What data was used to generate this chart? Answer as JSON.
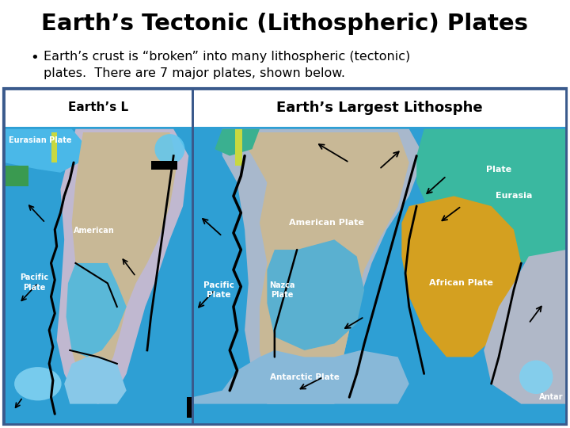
{
  "title": "Earth’s Tectonic (Lithospheric) Plates",
  "bullet": "Earth’s crust is “broken” into many lithospheric (tectonic)\nplates.  There are 7 major plates, shown below.",
  "bg_color": "#ffffff",
  "box_border_color": "#3a5a8c",
  "title_color": "#000000",
  "bullet_color": "#000000",
  "ocean_dark": "#2b9fd4",
  "ocean_mid": "#4ab8e8",
  "plate_blue_light": "#7bcce8",
  "plate_lavender": "#a0b4d0",
  "plate_tan": "#c8b896",
  "plate_green": "#3ab8a0",
  "plate_gold": "#d4a020",
  "plate_light_blue": "#88ccee",
  "plate_pale_blue": "#b8d8f0",
  "header_bg": "#ffffff",
  "map1_title": "Earth’s L",
  "map2_title": "Earth’s Largest Lithosphe"
}
